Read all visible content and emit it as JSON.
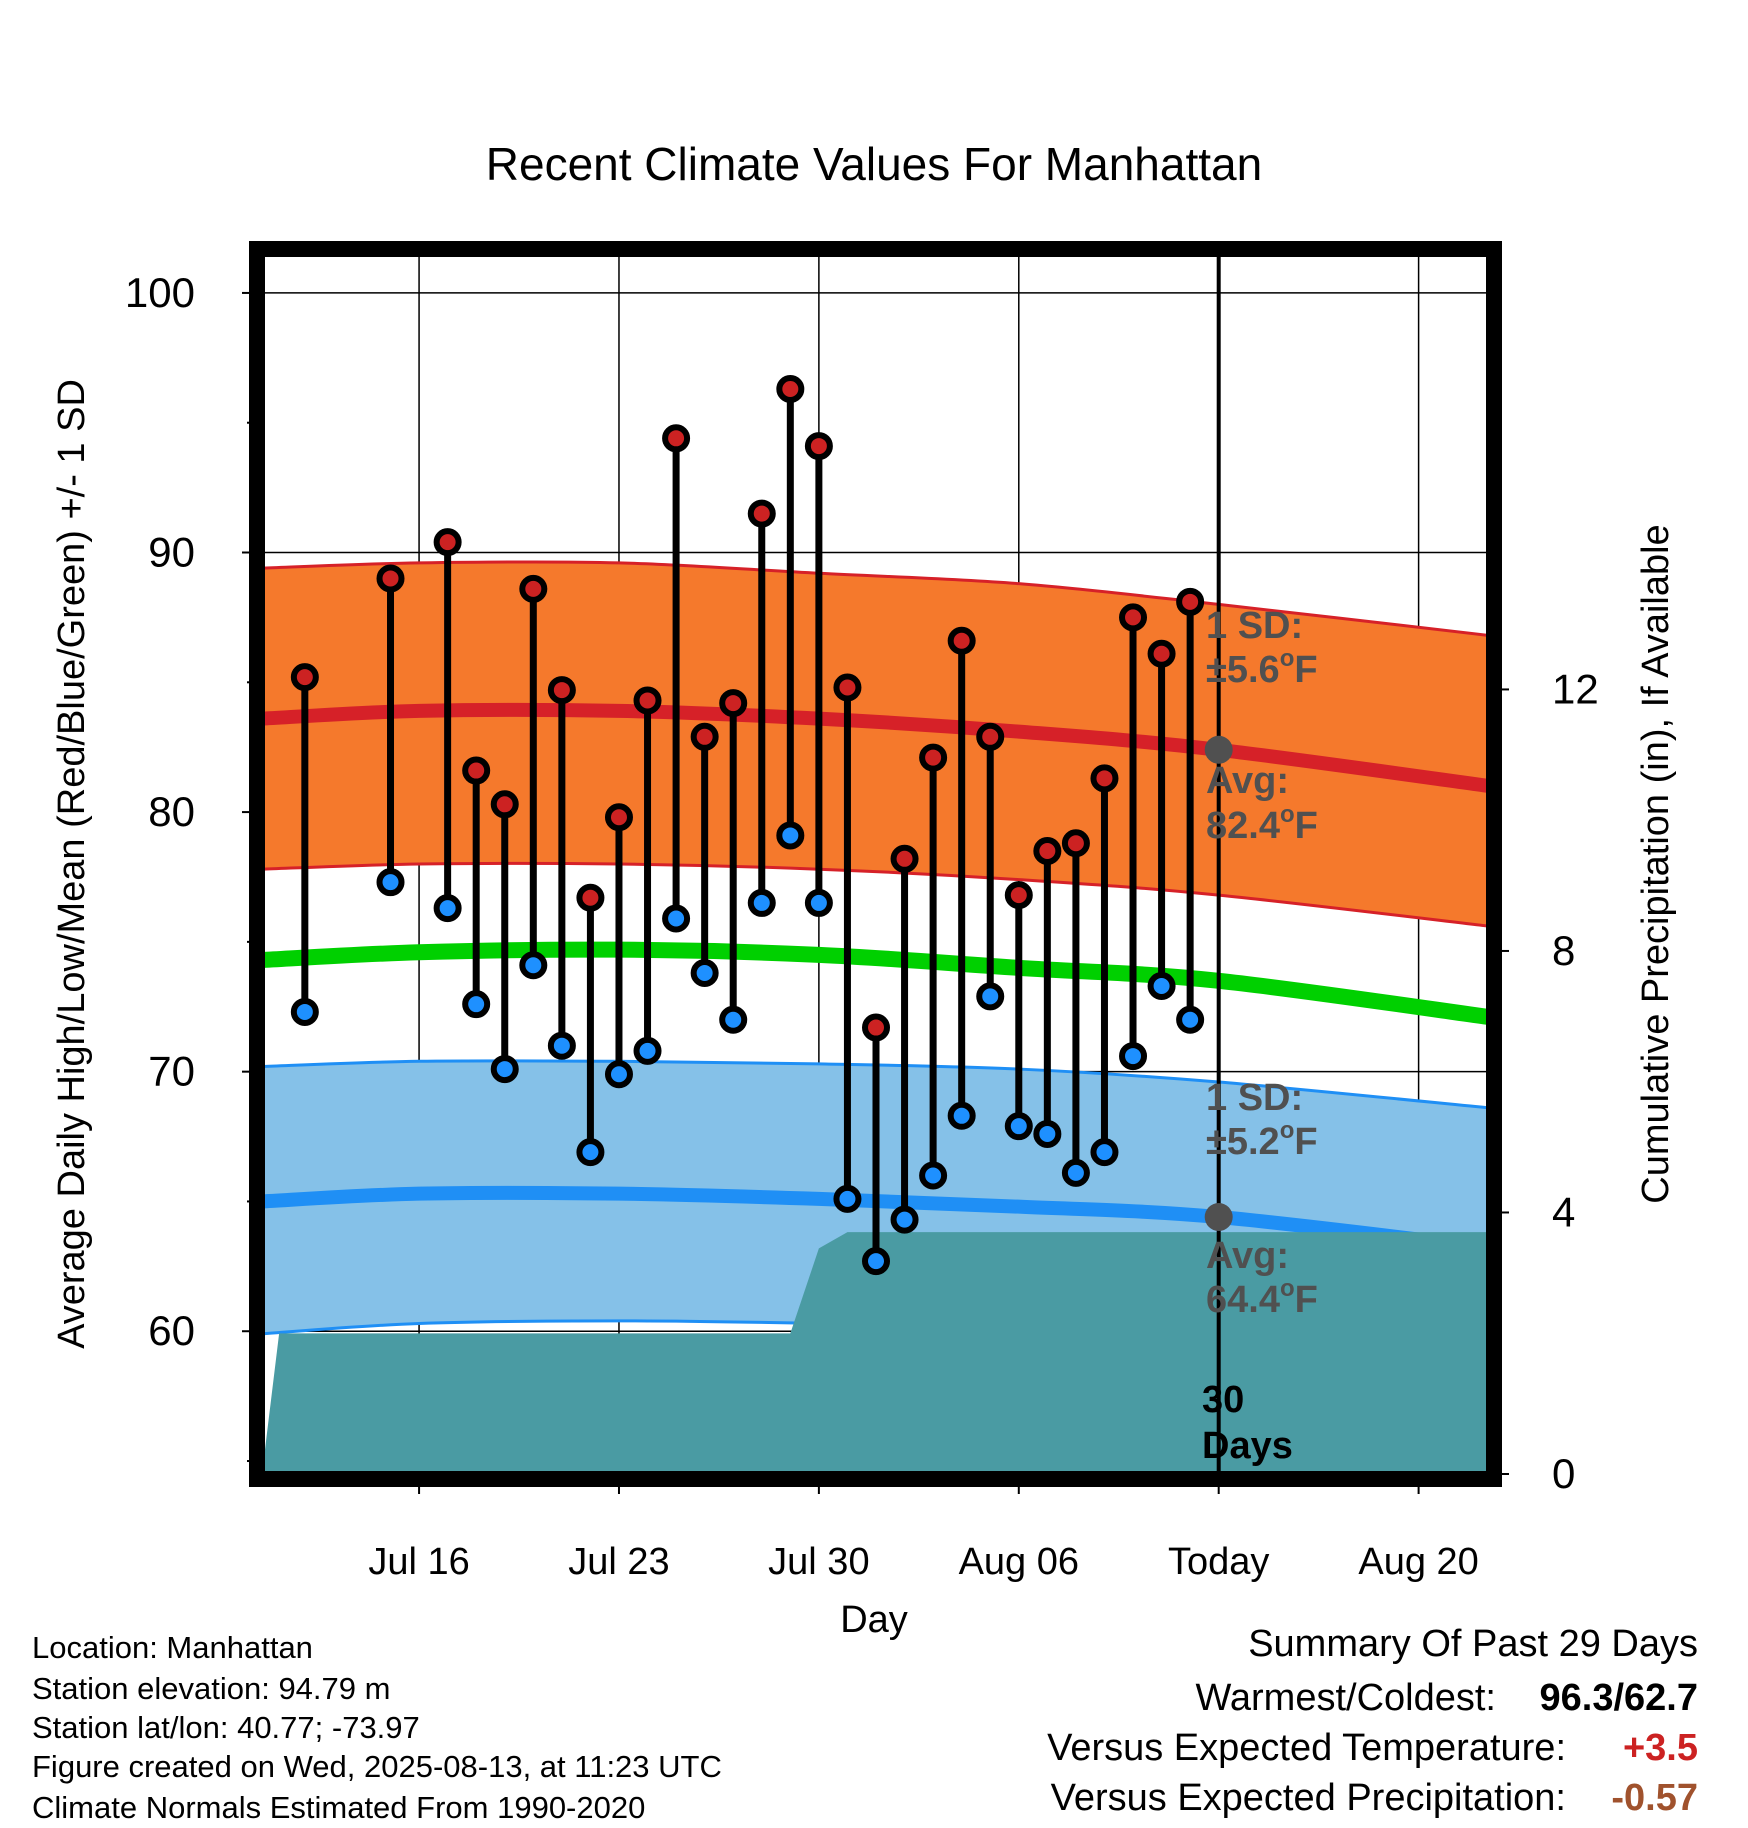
{
  "chart_data": {
    "type": "line",
    "title": "Recent Climate Values For Manhattan",
    "xlabel": "Day",
    "ylabel": "Average Daily High/Low/Mean (Red/Blue/Green) +/- 1 SD",
    "y2label": "Cumulative Precipitation (in), If Available",
    "ylim": [
      54.5,
      101.5
    ],
    "y2lim": [
      0,
      18.66
    ],
    "yticks": [
      60,
      70,
      80,
      90,
      100
    ],
    "y2ticks": [
      0,
      4,
      8,
      12
    ],
    "x_range_days": [
      -33.5,
      9.5
    ],
    "x_origin": "Aug 13",
    "xticks": [
      {
        "day": -28,
        "label": "Jul 16"
      },
      {
        "day": -21,
        "label": "Jul 23"
      },
      {
        "day": -14,
        "label": "Jul 30"
      },
      {
        "day": -7,
        "label": "Aug 06"
      },
      {
        "day": 0,
        "label": "Today"
      },
      {
        "day": 7,
        "label": "Aug 20"
      }
    ],
    "grid": true,
    "colors": {
      "high_band": "#f5792c",
      "high_avg": "#d62128",
      "high_point": "#cc2222",
      "low_band": "#85c1e8",
      "low_avg": "#1f8ff5",
      "low_point": "#1e90ff",
      "mean_line": "#00d000",
      "precip": "#4a9ba3",
      "annotation": "#505050",
      "summary_temp": "#cc2222",
      "summary_precip": "#a0522d"
    },
    "normals": {
      "day": [
        -33.5,
        -28,
        -21,
        -14,
        -7,
        0,
        9.5
      ],
      "high_avg": [
        83.6,
        83.9,
        83.9,
        83.6,
        83.1,
        82.4,
        81.0
      ],
      "high_upper": [
        89.4,
        89.6,
        89.6,
        89.2,
        88.8,
        88.0,
        86.8
      ],
      "high_lower": [
        77.8,
        78.0,
        78.0,
        77.8,
        77.4,
        76.8,
        75.6
      ],
      "mean": [
        74.3,
        74.6,
        74.7,
        74.5,
        74.0,
        73.5,
        72.1
      ],
      "low_avg": [
        65.0,
        65.3,
        65.3,
        65.1,
        64.8,
        64.4,
        63.2
      ],
      "low_upper": [
        70.2,
        70.4,
        70.4,
        70.3,
        70.1,
        69.6,
        68.6
      ],
      "low_lower": [
        59.9,
        60.3,
        60.4,
        60.3,
        60.1,
        59.6,
        58.7
      ]
    },
    "series": [
      {
        "name": "High",
        "x": [
          -29,
          -27,
          -26,
          -25,
          -24,
          -23,
          -22,
          -21,
          -20,
          -19,
          -18,
          -17,
          -16,
          -15,
          -14,
          -13,
          -12,
          -11,
          -10,
          -9,
          -8,
          -7,
          -6,
          -5,
          -4,
          -3,
          -2,
          -1
        ],
        "values": [
          89.0,
          90.4,
          81.6,
          80.3,
          88.6,
          84.7,
          76.7,
          79.8,
          84.3,
          94.4,
          82.9,
          84.2,
          91.5,
          96.3,
          94.1,
          84.8,
          71.7,
          78.2,
          82.1,
          86.6,
          82.9,
          76.8,
          78.5,
          78.8,
          81.3,
          87.5,
          86.1,
          88.1
        ]
      },
      {
        "name": "Low",
        "x": [
          -29,
          -27,
          -26,
          -25,
          -24,
          -23,
          -22,
          -21,
          -20,
          -19,
          -18,
          -17,
          -16,
          -15,
          -14,
          -13,
          -12,
          -11,
          -10,
          -9,
          -8,
          -7,
          -6,
          -5,
          -4,
          -3,
          -2,
          -1
        ],
        "values": [
          77.3,
          76.3,
          72.6,
          70.1,
          74.1,
          71.0,
          66.9,
          69.9,
          70.8,
          75.9,
          73.8,
          72.0,
          76.5,
          79.1,
          76.5,
          65.1,
          62.7,
          64.3,
          66.0,
          68.3,
          72.9,
          67.9,
          67.6,
          66.1,
          66.9,
          70.6,
          73.3,
          72.0
        ]
      }
    ],
    "isolated_points": [
      {
        "x": -32,
        "high": 85.2,
        "low": 72.3
      }
    ],
    "precipitation_cumulative": {
      "x": [
        -33.5,
        -32.9,
        -15.0,
        -14.0,
        -13.0,
        -7.0,
        9.5
      ],
      "values": [
        0.0,
        2.15,
        2.15,
        3.45,
        3.7,
        3.7,
        3.7
      ]
    },
    "annotations": {
      "high_sd": {
        "line1": "1 SD:",
        "line2": "±5.6",
        "unit": "F",
        "deg": "o"
      },
      "high_avg": {
        "line1": "Avg:",
        "line2": "82.4",
        "unit": "F",
        "deg": "o",
        "value": 82.4
      },
      "low_sd": {
        "line1": "1 SD:",
        "line2": "±5.2",
        "unit": "F",
        "deg": "o"
      },
      "low_avg": {
        "line1": "Avg:",
        "line2": "64.4",
        "unit": "F",
        "deg": "o",
        "value": 64.4
      },
      "window": {
        "line1": "30",
        "line2": "Days"
      }
    }
  },
  "station_info": {
    "location": "Location: Manhattan",
    "elevation": "Station elevation: 94.79 m",
    "latlon": "Station lat/lon: 40.77; -73.97",
    "created": "Figure created on Wed, 2025-08-13, at 11:23 UTC",
    "normals": "Climate Normals Estimated From 1990-2020"
  },
  "summary": {
    "title": "Summary Of Past 29 Days",
    "warm_cold_label": "Warmest/Coldest:",
    "warmest": "96.3",
    "separator": "/",
    "coldest": "62.7",
    "temp_label": "Versus Expected Temperature:",
    "temp_value": "+3.5",
    "precip_label": "Versus Expected Precipitation:",
    "precip_value": "-0.57"
  }
}
